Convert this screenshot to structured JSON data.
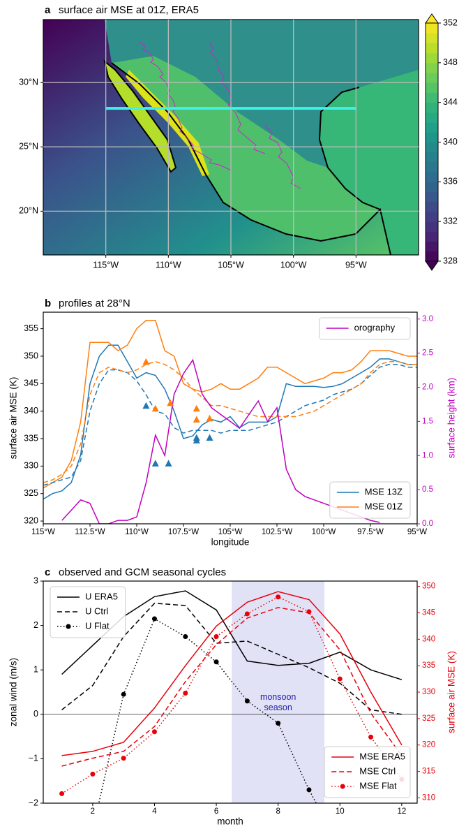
{
  "chart_data": [
    {
      "type": "map",
      "label": "a",
      "title": "surface air MSE at 01Z, ERA5",
      "xlim": [
        -120,
        -90
      ],
      "ylim": [
        16.6,
        34.9
      ],
      "xticks": [
        {
          "value": -115,
          "label": "115°W"
        },
        {
          "value": -110,
          "label": "110°W"
        },
        {
          "value": -105,
          "label": "105°W"
        },
        {
          "value": -100,
          "label": "100°W"
        },
        {
          "value": -95,
          "label": "95°W"
        }
      ],
      "yticks": [
        {
          "value": 20,
          "label": "20°N"
        },
        {
          "value": 25,
          "label": "25°N"
        },
        {
          "value": 30,
          "label": "30°N"
        }
      ],
      "grid": true,
      "colorbar": {
        "lim": [
          328,
          352
        ],
        "ticks": [
          328,
          332,
          336,
          340,
          344,
          348,
          352
        ],
        "colormap": "viridis",
        "extend": "both"
      },
      "transect": {
        "lat": 28,
        "lon": [
          -115,
          -95
        ],
        "color": "#3ff2e8"
      }
    },
    {
      "type": "line",
      "label": "b",
      "title": "profiles at 28°N",
      "xlabel": "longitude",
      "ylabel": "surface air MSE (K)",
      "y2label": "surface height (km)",
      "y2color": "#c000c0",
      "x": [
        -115,
        -114.5,
        -114,
        -113.5,
        -113,
        -112.5,
        -112,
        -111.5,
        -111,
        -110.5,
        -110,
        -109.5,
        -109,
        -108.5,
        -108,
        -107.5,
        -107,
        -106.5,
        -106,
        -105.5,
        -105,
        -104.5,
        -104,
        -103.5,
        -103,
        -102.5,
        -102,
        -101.5,
        -101,
        -100.5,
        -100,
        -99.5,
        -99,
        -98.5,
        -98,
        -97.5,
        -97,
        -96.5,
        -96,
        -95.5,
        -95
      ],
      "xlim": [
        -115,
        -95
      ],
      "xticks": [
        {
          "value": -115,
          "label": "115°W"
        },
        {
          "value": -112.5,
          "label": "112.5°W"
        },
        {
          "value": -110,
          "label": "110°W"
        },
        {
          "value": -107.5,
          "label": "107.5°W"
        },
        {
          "value": -105,
          "label": "105°W"
        },
        {
          "value": -102.5,
          "label": "102.5°W"
        },
        {
          "value": -100,
          "label": "100°W"
        },
        {
          "value": -97.5,
          "label": "97.5°W"
        },
        {
          "value": -95,
          "label": "95°W"
        }
      ],
      "ylim": [
        319.5,
        358
      ],
      "yticks": [
        320,
        325,
        330,
        335,
        340,
        345,
        350,
        355
      ],
      "y2lim": [
        0,
        3.1
      ],
      "y2ticks": [
        {
          "value": 0,
          "label": "0.0"
        },
        0.5,
        {
          "value": 1,
          "label": "1.0"
        },
        1.5,
        {
          "value": 2,
          "label": "2.0"
        },
        2.5,
        {
          "value": 3,
          "label": "3.0"
        }
      ],
      "legend": "lower right",
      "legend2": "upper right",
      "series": [
        {
          "name": "MSE 13Z",
          "color": "#1f77b4",
          "dash": "solid",
          "values": [
            324,
            325,
            325.5,
            327,
            332,
            345,
            350,
            352,
            352,
            349,
            346,
            347,
            346.5,
            344,
            340,
            335,
            335.5,
            337.5,
            338.5,
            338,
            339,
            337,
            338,
            338,
            338,
            339,
            345,
            344.5,
            344.5,
            344.5,
            344.3,
            344.5,
            345,
            346,
            347,
            348,
            349.5,
            349.5,
            349,
            348.5,
            348.5
          ]
        },
        {
          "name": "MSE 01Z",
          "color": "#ff7f0e",
          "dash": "solid",
          "values": [
            326,
            327,
            328,
            331,
            338,
            352.5,
            352.5,
            352.5,
            351,
            352,
            355,
            356.5,
            356.5,
            351,
            350,
            345,
            344,
            343.5,
            344,
            345,
            344,
            344,
            345,
            346,
            348,
            348,
            347,
            346,
            345,
            345.5,
            346,
            347,
            347,
            347.5,
            349,
            351,
            351,
            351,
            350.5,
            350,
            350
          ]
        },
        {
          "color": "#1f77b4",
          "dash": "dashed",
          "values": [
            326.5,
            327,
            327.5,
            328,
            331,
            340,
            345,
            347.5,
            347.5,
            347,
            345.5,
            343,
            340,
            339.5,
            337,
            336,
            336.5,
            336.5,
            336.5,
            336,
            336.5,
            336.5,
            336.5,
            337,
            337.5,
            338,
            339,
            340,
            341,
            341.5,
            342,
            343,
            343.5,
            344,
            345,
            346.5,
            348,
            348.5,
            348.5,
            348,
            348
          ]
        },
        {
          "color": "#ff7f0e",
          "dash": "dashed",
          "values": [
            327,
            327.5,
            328.5,
            330,
            334,
            343,
            347,
            348,
            347.5,
            347,
            347.5,
            348.5,
            349,
            348.5,
            347.5,
            346,
            344,
            342.5,
            341,
            341,
            340.5,
            340,
            339.5,
            339,
            339,
            339,
            339,
            339,
            339.5,
            340,
            341,
            342,
            343,
            344,
            345,
            347,
            348.5,
            349,
            349,
            348.5,
            348.5
          ]
        },
        {
          "name": "orography",
          "color": "#c000c0",
          "dash": "solid",
          "axis": "y2",
          "values": [
            null,
            null,
            0.05,
            0.2,
            0.35,
            0.3,
            0.0,
            0.0,
            0.05,
            0.05,
            0.1,
            0.6,
            1.3,
            1.0,
            1.9,
            2.2,
            2.4,
            1.9,
            1.7,
            1.6,
            1.5,
            1.4,
            1.6,
            1.8,
            1.5,
            1.7,
            0.8,
            0.5,
            0.4,
            0.35,
            0.3,
            0.25,
            0.2,
            0.15,
            0.1,
            0.05,
            0.02,
            null,
            null,
            null,
            null
          ]
        }
      ],
      "markers": [
        {
          "color": "#1f77b4",
          "shape": "triangle",
          "x": [
            -109.5,
            -109,
            -108.3,
            -106.8,
            -106.8,
            -106.1
          ],
          "values": [
            341,
            330.5,
            330.5,
            335.2,
            334.7,
            335.2
          ]
        },
        {
          "color": "#ff7f0e",
          "shape": "triangle",
          "x": [
            -109.5,
            -109,
            -108.2,
            -106.8,
            -106.8,
            -106.1
          ],
          "values": [
            349,
            340.5,
            341.5,
            340.5,
            338.5,
            338.7
          ]
        }
      ]
    },
    {
      "type": "line",
      "label": "c",
      "title": "observed and GCM seasonal cycles",
      "xlabel": "month",
      "ylabel": "zonal wind (m/s)",
      "y2label": "surface air MSE (K)",
      "y2color": "#e8000b",
      "x": [
        1,
        2,
        3,
        4,
        5,
        6,
        7,
        8,
        9,
        10,
        11,
        12
      ],
      "xlim": [
        0.4,
        12.5
      ],
      "xticks": [
        2,
        4,
        6,
        8,
        10,
        12
      ],
      "ylim": [
        -2,
        3
      ],
      "yticks": [
        {
          "value": -2,
          "label": "−2"
        },
        {
          "value": -1,
          "label": "−1"
        },
        0,
        1,
        2,
        3
      ],
      "y2lim": [
        309,
        351
      ],
      "y2ticks": [
        310,
        315,
        320,
        325,
        330,
        335,
        340,
        345,
        350
      ],
      "hline": 0,
      "shade": {
        "x": [
          6.5,
          9.5
        ],
        "color": "#e2e2f6",
        "label": [
          "monsoon",
          "season"
        ],
        "label_color": "#1c1ca8"
      },
      "legend": "upper left",
      "legend2": "lower right",
      "series": [
        {
          "name": "U ERA5",
          "color": "#000000",
          "dash": "solid",
          "values": [
            0.9,
            1.55,
            2.2,
            2.65,
            2.78,
            2.35,
            1.2,
            1.1,
            1.15,
            1.4,
            1.0,
            0.78
          ]
        },
        {
          "name": "U Ctrl",
          "color": "#000000",
          "dash": "dashed",
          "values": [
            0.1,
            0.65,
            1.75,
            2.5,
            2.45,
            1.6,
            1.65,
            1.35,
            1.05,
            0.7,
            0.1,
            0.0
          ]
        },
        {
          "name": "U Flat",
          "color": "#000000",
          "dash": "dotted",
          "marker": "circle",
          "values": [
            null,
            -2.6,
            0.45,
            2.15,
            1.75,
            1.18,
            0.3,
            -0.2,
            -1.7,
            -3.0,
            null,
            null
          ]
        },
        {
          "name": "MSE ERA5",
          "color": "#e8000b",
          "dash": "solid",
          "axis": "y2",
          "values": [
            318,
            318.8,
            320.5,
            327,
            335,
            342.5,
            347,
            349,
            347.5,
            341,
            330,
            320
          ]
        },
        {
          "name": "MSE Ctrl",
          "color": "#e8000b",
          "dash": "dashed",
          "axis": "y2",
          "values": [
            316,
            317.5,
            318.8,
            323.5,
            332,
            339,
            344,
            346,
            345,
            338,
            326,
            318
          ]
        },
        {
          "name": "MSE Flat",
          "color": "#e8000b",
          "dash": "dotted",
          "marker": "circle",
          "axis": "y2",
          "values": [
            310.8,
            314.5,
            317.5,
            322.5,
            329.8,
            340.5,
            344.8,
            348,
            345.2,
            332.5,
            321.5,
            313.5
          ]
        }
      ]
    }
  ]
}
